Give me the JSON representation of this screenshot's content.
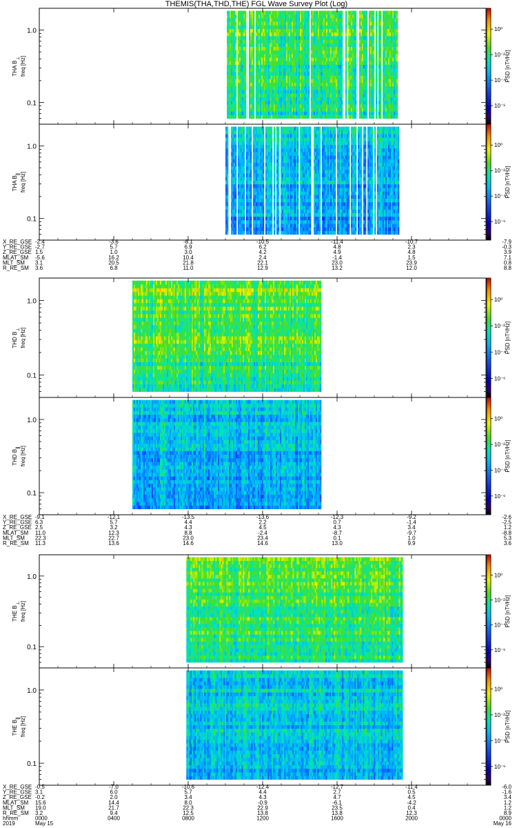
{
  "chart_data": {
    "type": "heatmap",
    "title": "THEMIS(THA,THD,THE) FGL Wave Survey Plot (Log)",
    "x_axis": {
      "kind": "time",
      "tick_labels": [
        "0000",
        "0400",
        "0800",
        "1200",
        "1600",
        "2000",
        "0000"
      ],
      "label": "hhmm",
      "start_label": "2019",
      "date_start": "May 15",
      "date_end": "May 16",
      "range_hours": [
        0,
        24
      ]
    },
    "y_axis": {
      "scale": "log",
      "range_hz": [
        0.05,
        2.0
      ],
      "tick_values": [
        1.0,
        0.1
      ],
      "tick_labels": [
        "1.0",
        "0.1"
      ],
      "label": "freq [Hz]"
    },
    "colorbar": {
      "label": "PSD [nT²/Hz]",
      "scale": "log",
      "range": [
        1e-09,
        100.0
      ],
      "tick_labels": [
        "10⁰",
        "10⁻²",
        "10⁻⁴",
        "10⁻⁶"
      ]
    },
    "panels": [
      {
        "name": "THA B⊥",
        "ylabel_probe": "THA B",
        "ylabel_comp": "⊥",
        "probe": "THA",
        "component": "perp",
        "data_hours": [
          10.0,
          19.3
        ],
        "seed": 11,
        "level": 0.55,
        "gaps": "dense"
      },
      {
        "name": "THA B∥",
        "ylabel_probe": "THA B",
        "ylabel_comp": "∥",
        "probe": "THA",
        "component": "par",
        "data_hours": [
          10.0,
          19.3
        ],
        "seed": 23,
        "level": 0.4,
        "gaps": "dense"
      },
      {
        "name": "THD B⊥",
        "ylabel_probe": "THD B",
        "ylabel_comp": "⊥",
        "probe": "THD",
        "component": "perp",
        "data_hours": [
          5.0,
          15.1
        ],
        "seed": 37,
        "level": 0.58,
        "gaps": "none"
      },
      {
        "name": "THD B∥",
        "ylabel_probe": "THD B",
        "ylabel_comp": "∥",
        "probe": "THD",
        "component": "par",
        "data_hours": [
          5.0,
          15.1
        ],
        "seed": 41,
        "level": 0.4,
        "gaps": "none"
      },
      {
        "name": "THE B⊥",
        "ylabel_probe": "THE B",
        "ylabel_comp": "⊥",
        "probe": "THE",
        "component": "perp",
        "data_hours": [
          7.9,
          19.5
        ],
        "seed": 53,
        "level": 0.58,
        "gaps": "none"
      },
      {
        "name": "THE B∥",
        "ylabel_probe": "THE B",
        "ylabel_comp": "∥",
        "probe": "THE",
        "component": "par",
        "data_hours": [
          7.9,
          19.5
        ],
        "seed": 67,
        "level": 0.42,
        "gaps": "none"
      }
    ],
    "ephemeris": [
      {
        "probe": "THA",
        "rows": [
          {
            "label": "X_RE_GSE",
            "values": [
              "-2.4",
              "-3.6",
              "-8.1",
              "-10.5",
              "-11.4",
              "-10.7",
              "-7.9"
            ]
          },
          {
            "label": "Y_RE_GSE",
            "values": [
              "-2.7",
              "5.7",
              "6.9",
              "6.2",
              "4.8",
              "2.3",
              "-0.3"
            ]
          },
          {
            "label": "Z_RE_GSE",
            "values": [
              "1.5",
              "1.0",
              "3.0",
              "4.2",
              "4.9",
              "4.8",
              "3.9"
            ]
          },
          {
            "label": "MLAT_SM",
            "values": [
              "-5.6",
              "16.2",
              "10.4",
              "2.4",
              "-1.4",
              "1.5",
              "7.1"
            ]
          },
          {
            "label": "MLT_SM",
            "values": [
              "3.1",
              "20.5",
              "21.8",
              "22.1",
              "23.0",
              "23.9",
              "0.8"
            ]
          },
          {
            "label": "R_RE_SM",
            "values": [
              "3.6",
              "6.8",
              "11.0",
              "12.9",
              "13.2",
              "12.0",
              "8.8"
            ]
          }
        ]
      },
      {
        "probe": "THD",
        "rows": [
          {
            "label": "X_RE_GSE",
            "values": [
              "-9.1",
              "-12.1",
              "-13.5",
              "-13.6",
              "-12.3",
              "-9.2",
              "-2.6"
            ]
          },
          {
            "label": "Y_RE_GSE",
            "values": [
              "6.3",
              "5.7",
              "4.4",
              "2.2",
              "0.7",
              "-1.4",
              "-2.5"
            ]
          },
          {
            "label": "Z_RE_GSE",
            "values": [
              "2.5",
              "3.2",
              "4.3",
              "4.5",
              "4.3",
              "3.4",
              "1.2"
            ]
          },
          {
            "label": "MLAT_SM",
            "values": [
              "11.0",
              "12.3",
              "8.8",
              "-2.4",
              "-8.7",
              "-9.7",
              "-8.8"
            ]
          },
          {
            "label": "MLT_SM",
            "values": [
              "22.3",
              "22.7",
              "23.0",
              "23.4",
              "0.1",
              "1.0",
              "5.3"
            ]
          },
          {
            "label": "R_RE_SM",
            "values": [
              "11.3",
              "13.6",
              "14.6",
              "14.6",
              "13.0",
              "9.9",
              "3.6"
            ]
          }
        ]
      },
      {
        "probe": "THE",
        "rows": [
          {
            "label": "X_RE_GSE",
            "values": [
              "-0.5",
              "-7.0",
              "-10.6",
              "-12.4",
              "-12.7",
              "-11.4",
              "-6.0"
            ]
          },
          {
            "label": "Y_RE_GSE",
            "values": [
              "3.1",
              "6.0",
              "5.7",
              "4.4",
              "2.7",
              "0.5",
              "-1.6"
            ]
          },
          {
            "label": "Z_RE_GSE",
            "values": [
              "-0.2",
              "2.0",
              "3.4",
              "4.3",
              "4.7",
              "4.5",
              "3.4"
            ]
          },
          {
            "label": "MLAT_SM",
            "values": [
              "15.6",
              "14.4",
              "8.0",
              "-0.9",
              "-6.1",
              "-4.2",
              "1.2"
            ]
          },
          {
            "label": "MLT_SM",
            "values": [
              "19.0",
              "21.7",
              "22.3",
              "22.9",
              "23.5",
              "0.4",
              "1.2"
            ]
          },
          {
            "label": "R_RE_SM",
            "values": [
              "3.2",
              "9.4",
              "12.5",
              "13.8",
              "13.8",
              "12.3",
              "8.9"
            ]
          }
        ]
      }
    ]
  }
}
